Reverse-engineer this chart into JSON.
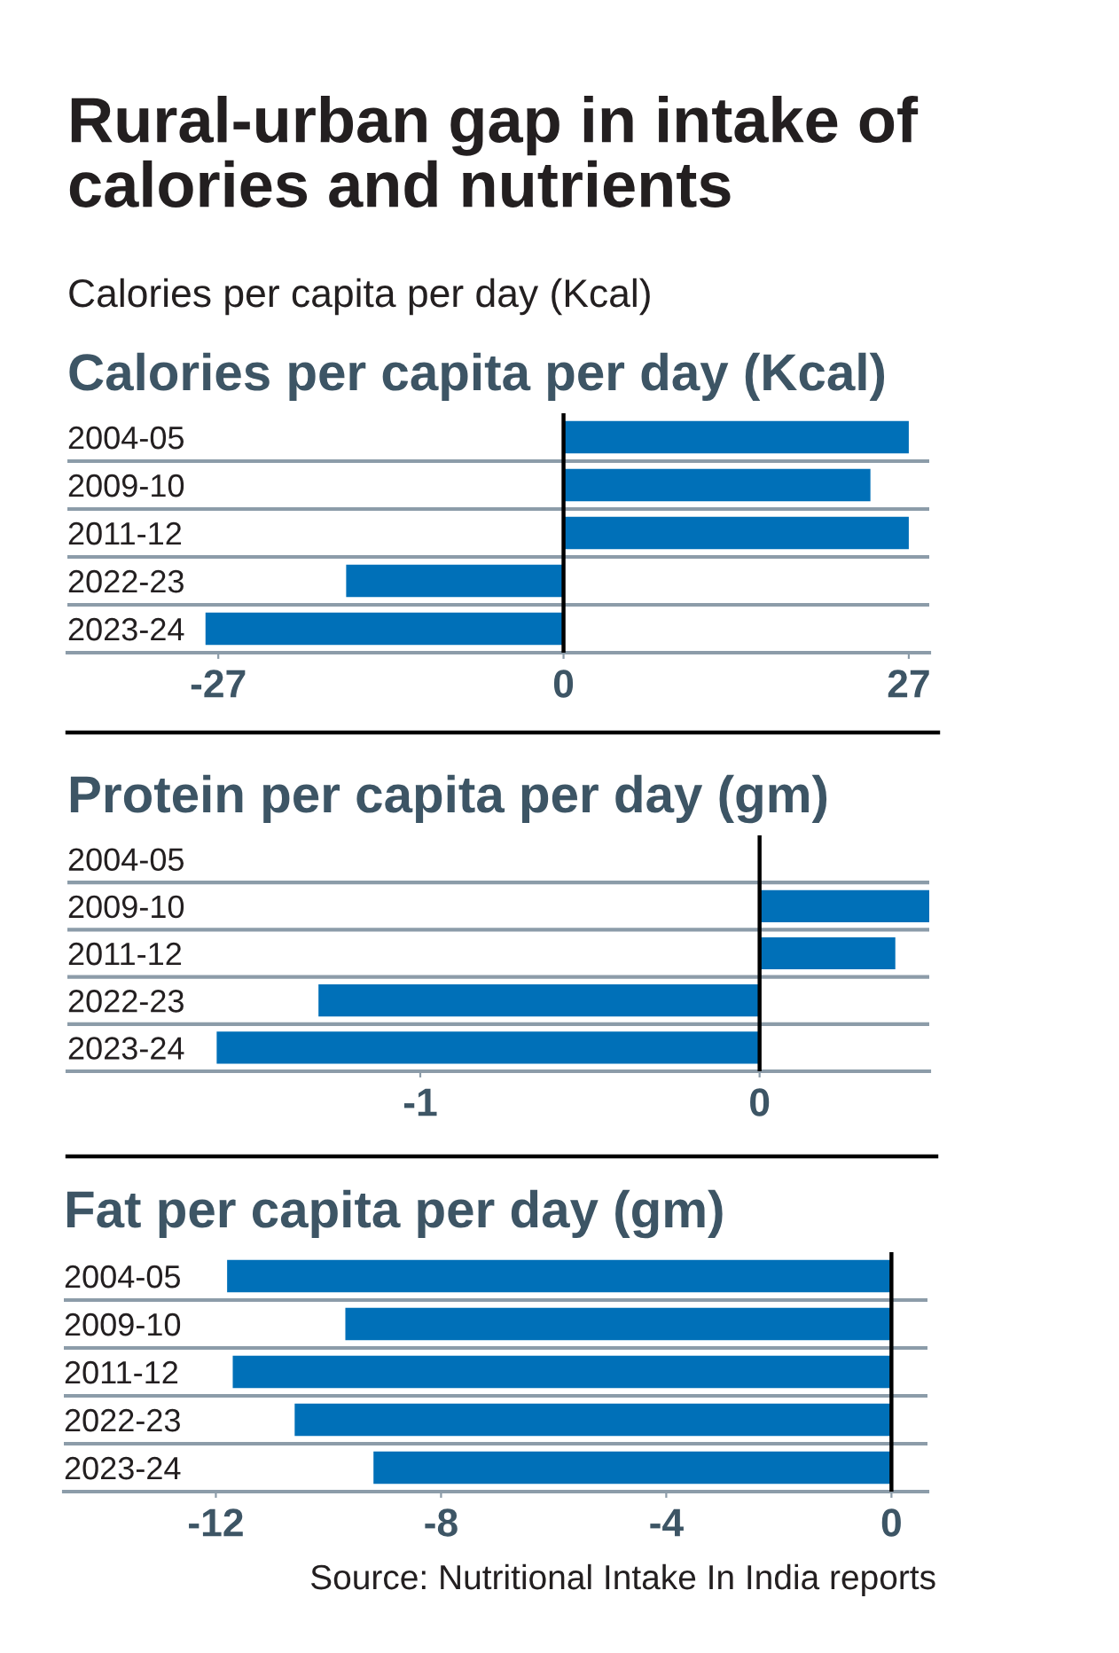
{
  "chart_data": [
    {
      "type": "other",
      "title": "Rural-urban gap in intake of calories and nutrients",
      "subtitle": "Calories per capita per day (Kcal)"
    },
    {
      "type": "bar",
      "orientation": "horizontal",
      "title": "Calories per capita per day (Kcal)",
      "categories": [
        "2004-05",
        "2009-10",
        "2011-12",
        "2022-23",
        "2023-24"
      ],
      "values": [
        27,
        24,
        27,
        -17,
        -28
      ],
      "color": "#0070b8",
      "xlim": [
        -38.8,
        28.6
      ],
      "xticks": [
        -27,
        0,
        27
      ],
      "grid": "y",
      "ref_lines": [
        {
          "axis": "x",
          "value": 0,
          "color": "#000000"
        }
      ]
    },
    {
      "type": "bar",
      "orientation": "horizontal",
      "title": "Protein per capita per day (gm)",
      "categories": [
        "2004-05",
        "2009-10",
        "2011-12",
        "2022-23",
        "2023-24"
      ],
      "values": [
        null,
        0.5,
        0.4,
        -1.3,
        -1.6
      ],
      "color": "#0070b8",
      "xlim": [
        -2.04,
        0.5
      ],
      "xticks": [
        -1,
        0
      ],
      "grid": "y",
      "ref_lines": [
        {
          "axis": "x",
          "value": 0,
          "color": "#000000"
        }
      ]
    },
    {
      "type": "bar",
      "orientation": "horizontal",
      "title": "Fat per capita per day (gm)",
      "categories": [
        "2004-05",
        "2009-10",
        "2011-12",
        "2022-23",
        "2023-24"
      ],
      "values": [
        -11.8,
        -9.7,
        -11.7,
        -10.6,
        -9.2
      ],
      "color": "#0070b8",
      "xlim": [
        -14.7,
        0.64
      ],
      "xticks": [
        -12,
        -8,
        -4,
        0
      ],
      "grid": "y",
      "ref_lines": [
        {
          "axis": "x",
          "value": 0,
          "color": "#000000"
        }
      ],
      "annotations": [
        "Source: Nutritional Intake In India reports"
      ]
    }
  ]
}
